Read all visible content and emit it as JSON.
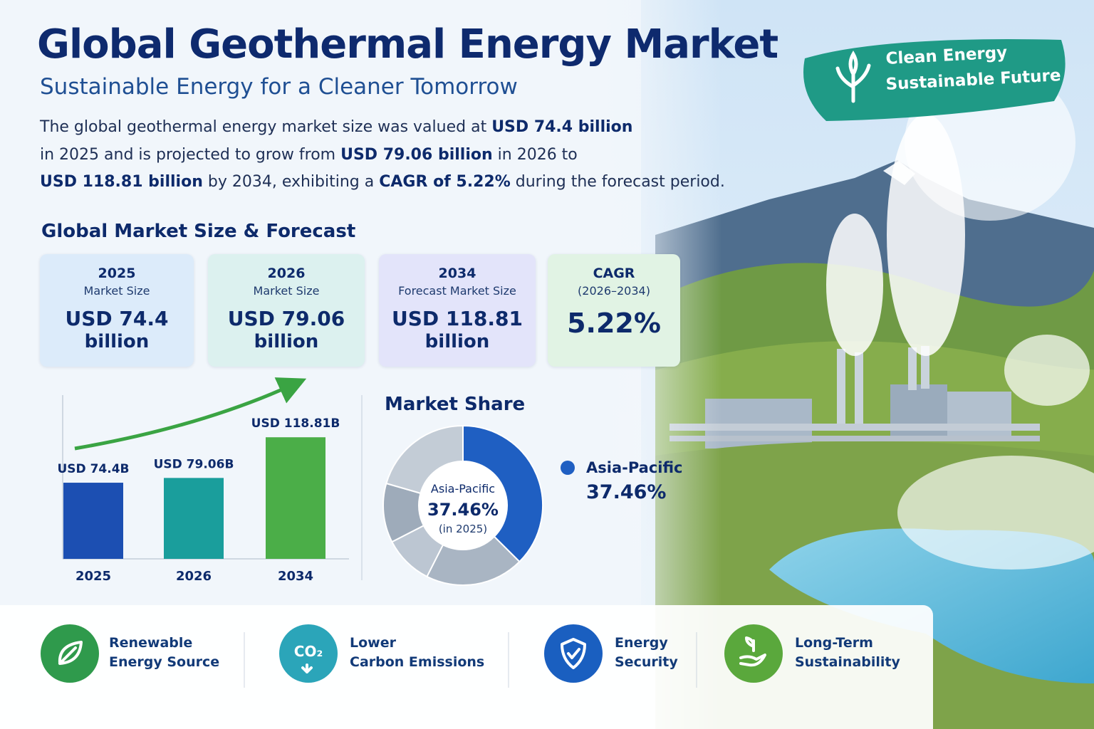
{
  "header": {
    "title": "Global Geothermal Energy Market",
    "subtitle": "Sustainable Energy for a Cleaner Tomorrow"
  },
  "badge": [
    "Clean Energy",
    "Sustainable Future"
  ],
  "summary": {
    "lines": [
      [
        {
          "text": "The global geothermal energy market size was valued at ",
          "bold": false
        },
        {
          "text": "USD 74.4 billion",
          "bold": true
        }
      ],
      [
        {
          "text": "in 2025 and is projected to grow from ",
          "bold": false
        },
        {
          "text": "USD 79.06 billion",
          "bold": true
        },
        {
          "text": " in 2026 to",
          "bold": false
        }
      ],
      [
        {
          "text": "USD 118.81 billion",
          "bold": true
        },
        {
          "text": " by 2034, exhibiting a ",
          "bold": false
        },
        {
          "text": "CAGR of 5.22%",
          "bold": true
        },
        {
          "text": " during the forecast period.",
          "bold": false
        }
      ]
    ]
  },
  "section_title": "Global Market Size & Forecast",
  "cards": [
    {
      "heading": "2025",
      "label": "Market Size",
      "value": "USD 74.4",
      "unit": "billion",
      "color": "#dcebfa"
    },
    {
      "heading": "2026",
      "label": "Market Size",
      "value": "USD 79.06",
      "unit": "billion",
      "color": "#dcf1ef"
    },
    {
      "heading": "2034",
      "label": "Forecast Market Size",
      "value": "USD 118.81",
      "unit": "billion",
      "color": "#e3e4fa"
    },
    {
      "heading": "CAGR",
      "label": "(2026–2034)",
      "value": "5.22%",
      "color": "#e1f3e4"
    }
  ],
  "chart_data": [
    {
      "type": "bar",
      "categories": [
        "2025",
        "2026",
        "2034"
      ],
      "values": [
        74.4,
        79.06,
        118.81
      ],
      "value_labels": [
        "USD 74.4B",
        "USD 79.06B",
        "USD 118.81B"
      ],
      "colors": [
        "#1c4fb2",
        "#1a9e9c",
        "#4bae48"
      ],
      "ylim": [
        0,
        160
      ]
    },
    {
      "type": "pie",
      "title": "Market Share",
      "categories": [
        "Asia-Pacific",
        null,
        null,
        null,
        null
      ],
      "values": [
        37.46,
        20,
        10,
        12,
        20.54
      ],
      "value_labels": [
        "37.46%",
        null,
        null,
        null,
        null
      ],
      "colors": [
        "#1f5fc2",
        "#a9b5c3",
        "#bcc6d2",
        "#9eabba",
        "#c3ccd6"
      ],
      "note": "(in 2025)"
    }
  ],
  "features": [
    {
      "lines": [
        "Renewable",
        "Energy Source"
      ],
      "color": "#2f9a4c"
    },
    {
      "lines": [
        "Lower",
        "Carbon Emissions"
      ],
      "color": "#2ba5b9",
      "icon_text": "CO₂"
    },
    {
      "lines": [
        "Energy",
        "Security"
      ],
      "color": "#1a5fc0"
    },
    {
      "lines": [
        "Long-Term",
        "Sustainability"
      ],
      "color": "#5aa83c"
    }
  ]
}
